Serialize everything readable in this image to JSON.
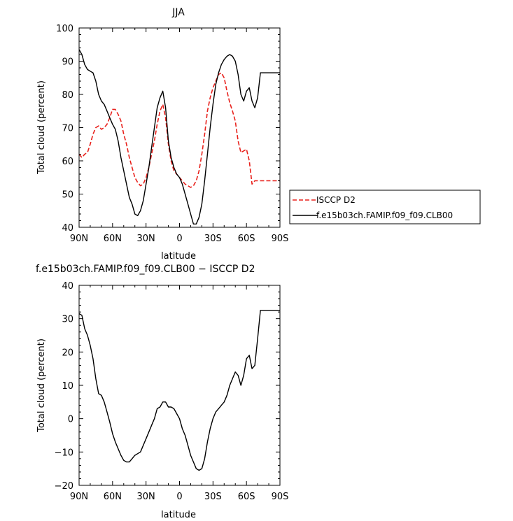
{
  "chart_data": [
    {
      "type": "line",
      "title": "JJA",
      "xlabel": "latitude",
      "ylabel": "Total cloud (percent)",
      "xlim": [
        -90,
        90
      ],
      "ylim": [
        40,
        100
      ],
      "xticks": [
        -90,
        -60,
        -30,
        0,
        30,
        60,
        90
      ],
      "xtick_labels": [
        "90N",
        "60N",
        "30N",
        "0",
        "30S",
        "60S",
        "90S"
      ],
      "yticks": [
        40,
        50,
        60,
        70,
        80,
        90,
        100
      ],
      "ytick_labels": [
        "40",
        "50",
        "60",
        "70",
        "80",
        "90",
        "100"
      ],
      "grid": false,
      "legend_position": "right",
      "series": [
        {
          "name": "ISCCP D2",
          "color": "#e8211c",
          "dash": "dashed",
          "x": [
            -90,
            -87.5,
            -85,
            -82.5,
            -80,
            -77.5,
            -75,
            -72.5,
            -70,
            -67.5,
            -65,
            -62.5,
            -60,
            -57.5,
            -55,
            -52.5,
            -50,
            -47.5,
            -45,
            -42.5,
            -40,
            -37.5,
            -35,
            -32.5,
            -30,
            -27.5,
            -25,
            -22.5,
            -20,
            -17.5,
            -15,
            -12.5,
            -10,
            -7.5,
            -5,
            -2.5,
            0,
            2.5,
            5,
            7.5,
            10,
            12.5,
            15,
            17.5,
            20,
            22.5,
            25,
            27.5,
            30,
            32.5,
            35,
            37.5,
            40,
            42.5,
            45,
            47.5,
            50,
            52.5,
            55,
            57.5,
            60,
            62.5,
            65,
            67.5,
            70,
            72.5,
            75,
            77.5,
            80,
            82.5,
            85,
            87.5,
            90
          ],
          "y": [
            62,
            61,
            62,
            62.5,
            65,
            68,
            70,
            70.5,
            69.5,
            70,
            71,
            73,
            75.5,
            75.5,
            74,
            72,
            68,
            65,
            61,
            58,
            55,
            53.5,
            52.5,
            53,
            55,
            58,
            62,
            66,
            71,
            75,
            77,
            73,
            65,
            60,
            57,
            56,
            55,
            54,
            53,
            52.5,
            52,
            52.5,
            54,
            57,
            62,
            68,
            75,
            79,
            82,
            84,
            86,
            86.5,
            85,
            81,
            77.5,
            75,
            72,
            66,
            62.5,
            63,
            63.5,
            60,
            53,
            54,
            54,
            54,
            54,
            54,
            54,
            54,
            54,
            54,
            54
          ]
        },
        {
          "name": "f.e15b03ch.FAMIP.f09_f09.CLB00",
          "color": "#000000",
          "dash": "solid",
          "x": [
            -90,
            -87.5,
            -85,
            -82.5,
            -80,
            -77.5,
            -75,
            -72.5,
            -70,
            -67.5,
            -65,
            -62.5,
            -60,
            -57.5,
            -55,
            -52.5,
            -50,
            -47.5,
            -45,
            -42.5,
            -40,
            -37.5,
            -35,
            -32.5,
            -30,
            -27.5,
            -25,
            -22.5,
            -20,
            -17.5,
            -15,
            -12.5,
            -10,
            -7.5,
            -5,
            -2.5,
            0,
            2.5,
            5,
            7.5,
            10,
            12.5,
            15,
            17.5,
            20,
            22.5,
            25,
            27.5,
            30,
            32.5,
            35,
            37.5,
            40,
            42.5,
            45,
            47.5,
            50,
            52.5,
            55,
            57.5,
            60,
            62.5,
            65,
            67.5,
            70,
            72.5,
            75,
            77.5,
            80,
            82.5,
            85,
            87.5,
            90
          ],
          "y": [
            93.5,
            92,
            89,
            87.5,
            87,
            86.5,
            84,
            80,
            78,
            77,
            75,
            73,
            71,
            69.5,
            66,
            61,
            57,
            53,
            49,
            47,
            44,
            43.5,
            45,
            48,
            53,
            58,
            64,
            70,
            76,
            79,
            81,
            76,
            66,
            61,
            58,
            56,
            55,
            53,
            50,
            47,
            44,
            41,
            41,
            43,
            47,
            54,
            62,
            70,
            77,
            83,
            86.5,
            89,
            90.5,
            91.5,
            92,
            91.5,
            90,
            86,
            80,
            78,
            81,
            82,
            78,
            76,
            79,
            86.5,
            86.5,
            86.5,
            86.5,
            86.5,
            86.5,
            86.5,
            86.5
          ]
        }
      ]
    },
    {
      "type": "line",
      "title": "f.e15b03ch.FAMIP.f09_f09.CLB00 − ISCCP D2",
      "xlabel": "latitude",
      "ylabel": "Total cloud (percent)",
      "xlim": [
        -90,
        90
      ],
      "ylim": [
        -20,
        40
      ],
      "xticks": [
        -90,
        -60,
        -30,
        0,
        30,
        60,
        90
      ],
      "xtick_labels": [
        "90N",
        "60N",
        "30N",
        "0",
        "30S",
        "60S",
        "90S"
      ],
      "yticks": [
        -20,
        -10,
        0,
        10,
        20,
        30,
        40
      ],
      "ytick_labels": [
        "−20",
        "−10",
        "0",
        "10",
        "20",
        "30",
        "40"
      ],
      "grid": false,
      "series": [
        {
          "color": "#000000",
          "dash": "solid",
          "x": [
            -90,
            -87.5,
            -85,
            -82.5,
            -80,
            -77.5,
            -75,
            -72.5,
            -70,
            -67.5,
            -65,
            -62.5,
            -60,
            -57.5,
            -55,
            -52.5,
            -50,
            -47.5,
            -45,
            -42.5,
            -40,
            -37.5,
            -35,
            -32.5,
            -30,
            -27.5,
            -25,
            -22.5,
            -20,
            -17.5,
            -15,
            -12.5,
            -10,
            -7.5,
            -5,
            -2.5,
            0,
            2.5,
            5,
            7.5,
            10,
            12.5,
            15,
            17.5,
            20,
            22.5,
            25,
            27.5,
            30,
            32.5,
            35,
            37.5,
            40,
            42.5,
            45,
            47.5,
            50,
            52.5,
            55,
            57.5,
            60,
            62.5,
            65,
            67.5,
            70,
            72.5,
            75,
            77.5,
            80,
            82.5,
            85,
            87.5,
            90
          ],
          "y": [
            31.5,
            31,
            27,
            25,
            22,
            18,
            12,
            7.5,
            7,
            5,
            2,
            -1,
            -4.5,
            -7,
            -9,
            -11,
            -12.5,
            -13,
            -13,
            -12,
            -11,
            -10.5,
            -10,
            -8,
            -6,
            -4,
            -2,
            0,
            3,
            3.5,
            5,
            5,
            3.5,
            3.5,
            3,
            1.5,
            0,
            -3,
            -5,
            -8,
            -11,
            -13,
            -15,
            -15.5,
            -15,
            -12,
            -7,
            -3,
            0,
            2,
            3,
            4,
            5,
            7,
            10,
            12,
            14,
            13,
            10,
            13,
            18,
            19,
            15,
            16,
            24,
            32.5,
            32.5,
            32.5,
            32.5,
            32.5,
            32.5,
            32.5,
            32.5
          ]
        }
      ]
    }
  ]
}
